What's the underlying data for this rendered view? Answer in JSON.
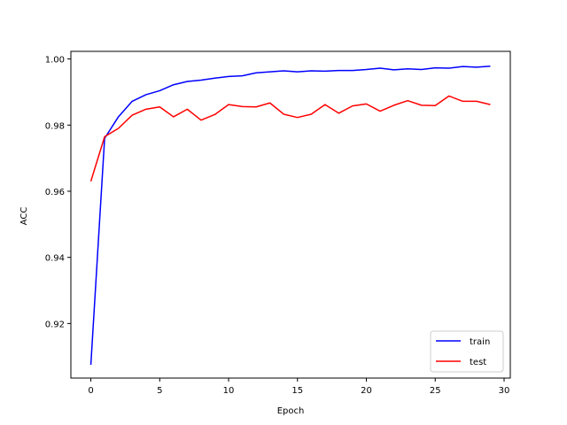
{
  "chart_data": {
    "type": "line",
    "title": "",
    "xlabel": "Epoch",
    "ylabel": "ACC",
    "xlim": [
      -1.45,
      30.45
    ],
    "ylim": [
      0.9035,
      1.0023
    ],
    "x_ticks": [
      0,
      5,
      10,
      15,
      20,
      25,
      30
    ],
    "x_tick_labels": [
      "0",
      "5",
      "10",
      "15",
      "20",
      "25",
      "30"
    ],
    "y_ticks": [
      0.92,
      0.94,
      0.96,
      0.98,
      1.0
    ],
    "y_tick_labels": [
      "0.92",
      "0.94",
      "0.96",
      "0.98",
      "1.00"
    ],
    "grid": false,
    "legend_position": "lower-right",
    "x": [
      0,
      1,
      2,
      3,
      4,
      5,
      6,
      7,
      8,
      9,
      10,
      11,
      12,
      13,
      14,
      15,
      16,
      17,
      18,
      19,
      20,
      21,
      22,
      23,
      24,
      25,
      26,
      27,
      28,
      29
    ],
    "series": [
      {
        "name": "train",
        "color": "#0000ff",
        "values": [
          0.9075,
          0.976,
          0.9825,
          0.9872,
          0.9892,
          0.9904,
          0.9922,
          0.9932,
          0.9936,
          0.9942,
          0.9947,
          0.9949,
          0.9958,
          0.9961,
          0.9964,
          0.9961,
          0.9964,
          0.9963,
          0.9965,
          0.9965,
          0.9968,
          0.9972,
          0.9967,
          0.997,
          0.9968,
          0.9973,
          0.9972,
          0.9977,
          0.9975,
          0.9978
        ]
      },
      {
        "name": "test",
        "color": "#ff0000",
        "values": [
          0.963,
          0.9765,
          0.979,
          0.983,
          0.9848,
          0.9855,
          0.9825,
          0.9848,
          0.9815,
          0.9832,
          0.9862,
          0.9856,
          0.9855,
          0.9867,
          0.9833,
          0.9823,
          0.9833,
          0.9862,
          0.9836,
          0.9858,
          0.9864,
          0.9842,
          0.986,
          0.9874,
          0.986,
          0.9859,
          0.9888,
          0.9872,
          0.9872,
          0.9862
        ]
      }
    ]
  }
}
